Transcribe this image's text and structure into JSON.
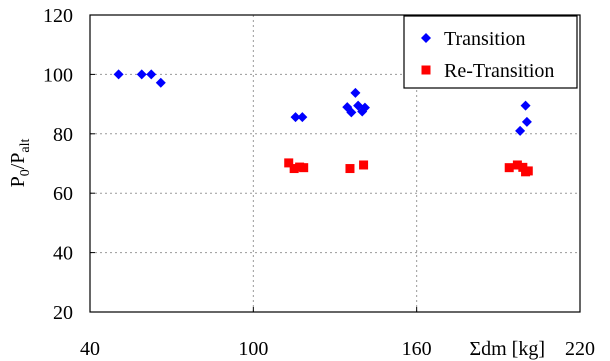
{
  "chart_data": {
    "type": "scatter",
    "xlabel": "Σdm [kg]",
    "ylabel": {
      "main": "P",
      "sub1": "0",
      "slash": "/P",
      "sub2": "alt"
    },
    "xlim": [
      40,
      220
    ],
    "ylim": [
      20,
      120
    ],
    "x_ticks": [
      40,
      100,
      160,
      220
    ],
    "y_ticks": [
      20,
      40,
      60,
      80,
      100,
      120
    ],
    "grid": true,
    "legend_position": "top-right",
    "series": [
      {
        "name": "Transition",
        "marker": "diamond",
        "color": "#0000ff",
        "points": [
          [
            50.5,
            100
          ],
          [
            59,
            100
          ],
          [
            62.5,
            100
          ],
          [
            66,
            97.2
          ],
          [
            115.5,
            85.6
          ],
          [
            118,
            85.6
          ],
          [
            134.5,
            89
          ],
          [
            136,
            87.2
          ],
          [
            137.5,
            93.8
          ],
          [
            138.5,
            89.5
          ],
          [
            140,
            87.5
          ],
          [
            141,
            88.8
          ],
          [
            198,
            81
          ],
          [
            200,
            89.5
          ],
          [
            200.5,
            84
          ]
        ]
      },
      {
        "name": "Re-Transition",
        "marker": "square",
        "color": "#ff0000",
        "points": [
          [
            113,
            70.2
          ],
          [
            115,
            68.3
          ],
          [
            117,
            68.8
          ],
          [
            118.5,
            68.6
          ],
          [
            135.5,
            68.3
          ],
          [
            140.5,
            69.5
          ],
          [
            194,
            68.6
          ],
          [
            197,
            69.5
          ],
          [
            199,
            68.7
          ],
          [
            200,
            67.2
          ],
          [
            201,
            67.5
          ]
        ]
      }
    ]
  }
}
